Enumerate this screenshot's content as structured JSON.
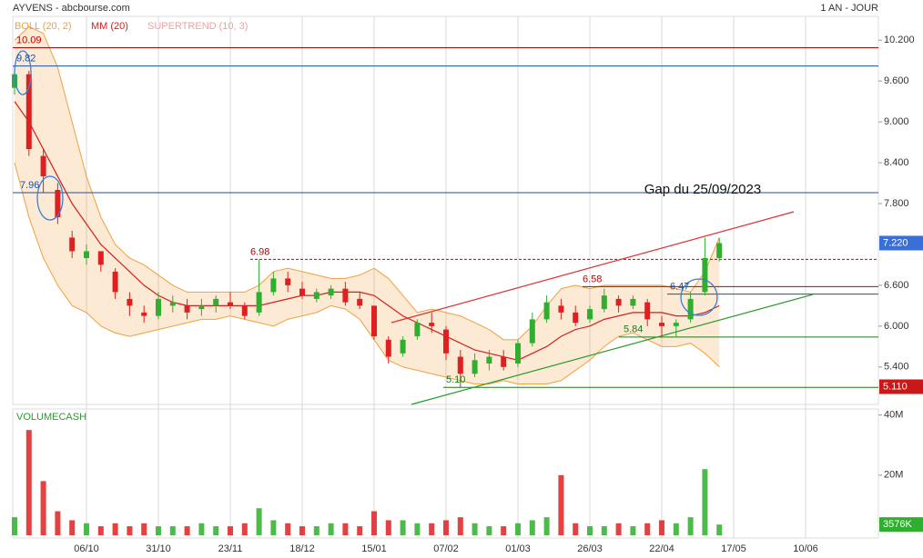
{
  "header": {
    "title": "AYVENS - abcbourse.com",
    "period": "1 AN - JOUR"
  },
  "chart_data": [
    {
      "type": "candlestick",
      "annotation": "Gap du 25/09/2023",
      "ylim": [
        4.85,
        10.55
      ],
      "yticks": [
        {
          "value": 5.4,
          "label": "5.400"
        },
        {
          "value": 6,
          "label": "6.000"
        },
        {
          "value": 6.6,
          "label": "6.600"
        },
        {
          "value": 7.8,
          "label": "7.800"
        },
        {
          "value": 8.4,
          "label": "8.400"
        },
        {
          "value": 9,
          "label": "9.000"
        },
        {
          "value": 9.6,
          "label": "9.600"
        },
        {
          "value": 10.2,
          "label": "10.200"
        }
      ],
      "open": [
        9.5,
        9.7,
        8.5,
        8.0,
        7.3,
        7.0,
        7.1,
        6.8,
        6.4,
        6.2,
        6.15,
        6.3,
        6.3,
        6.25,
        6.3,
        6.35,
        6.3,
        6.2,
        6.5,
        6.7,
        6.55,
        6.4,
        6.45,
        6.55,
        6.4,
        6.3,
        5.8,
        5.6,
        5.85,
        6.05,
        5.95,
        5.55,
        5.3,
        5.45,
        5.55,
        5.45,
        5.75,
        6.1,
        6.3,
        6.2,
        6.1,
        6.25,
        6.4,
        6.3,
        6.35,
        6.05,
        6.0,
        6.1,
        6.5,
        7.0,
        null,
        null,
        null,
        null,
        null,
        null,
        null,
        null,
        null,
        null,
        null
      ],
      "high": [
        9.82,
        9.75,
        8.6,
        8.1,
        7.4,
        7.2,
        7.1,
        6.85,
        6.5,
        6.3,
        6.5,
        6.45,
        6.4,
        6.4,
        6.45,
        6.5,
        6.35,
        6.98,
        6.8,
        6.8,
        6.65,
        6.55,
        6.6,
        6.65,
        6.5,
        6.3,
        5.85,
        5.85,
        6.1,
        6.2,
        6.0,
        5.65,
        5.6,
        5.65,
        5.65,
        5.8,
        6.2,
        6.45,
        6.4,
        6.3,
        6.3,
        6.55,
        6.45,
        6.45,
        6.4,
        6.15,
        6.1,
        6.5,
        7.3,
        7.3,
        null,
        null,
        null,
        null,
        null,
        null,
        null,
        null,
        null,
        null,
        null
      ],
      "low": [
        9.4,
        8.5,
        7.96,
        7.5,
        7.0,
        6.9,
        6.8,
        6.4,
        6.15,
        6.05,
        6.1,
        6.2,
        6.1,
        6.15,
        6.2,
        6.25,
        6.1,
        6.15,
        6.45,
        6.5,
        6.4,
        6.35,
        6.4,
        6.3,
        6.25,
        5.8,
        5.45,
        5.55,
        5.8,
        5.9,
        5.5,
        5.1,
        5.25,
        5.35,
        5.35,
        5.4,
        5.7,
        6.05,
        6.1,
        6.0,
        6.05,
        6.2,
        6.2,
        6.25,
        6.0,
        5.84,
        5.85,
        6.05,
        6.45,
        6.95,
        null,
        null,
        null,
        null,
        null,
        null,
        null,
        null,
        null,
        null,
        null
      ],
      "close": [
        9.7,
        8.6,
        8.2,
        7.6,
        7.1,
        7.1,
        6.9,
        6.5,
        6.3,
        6.15,
        6.4,
        6.35,
        6.2,
        6.3,
        6.4,
        6.3,
        6.15,
        6.5,
        6.7,
        6.6,
        6.45,
        6.5,
        6.55,
        6.35,
        6.3,
        5.85,
        5.55,
        5.8,
        6.05,
        6.0,
        5.6,
        5.3,
        5.5,
        5.55,
        5.4,
        5.75,
        6.1,
        6.35,
        6.2,
        6.05,
        6.25,
        6.45,
        6.3,
        6.4,
        6.1,
        6.0,
        6.05,
        6.4,
        7.0,
        7.22,
        null,
        null,
        null,
        null,
        null,
        null,
        null,
        null,
        null,
        null,
        null
      ],
      "up_color": "#2fae2f",
      "down_color": "#e02020",
      "boll": {
        "name": "BOLL (20, 2)",
        "color": "#f0a040",
        "upper": [
          10.2,
          10.4,
          10.3,
          9.8,
          9.0,
          8.2,
          7.6,
          7.2,
          7.0,
          6.9,
          6.75,
          6.6,
          6.5,
          6.5,
          6.5,
          6.5,
          6.5,
          6.6,
          6.8,
          6.85,
          6.8,
          6.75,
          6.7,
          6.7,
          6.75,
          6.85,
          6.7,
          6.45,
          6.2,
          6.25,
          6.2,
          6.15,
          6.05,
          5.95,
          5.8,
          5.8,
          6.0,
          6.3,
          6.55,
          6.6,
          6.55,
          6.6,
          6.6,
          6.6,
          6.6,
          6.6,
          6.55,
          6.5,
          6.8,
          7.3,
          null,
          null,
          null,
          null,
          null,
          null,
          null,
          null,
          null,
          null,
          null
        ],
        "lower": [
          8.4,
          7.6,
          7.0,
          6.6,
          6.3,
          6.2,
          6.0,
          5.9,
          5.85,
          5.9,
          5.95,
          6.0,
          6.05,
          6.1,
          6.1,
          6.15,
          6.1,
          6.05,
          6.0,
          6.1,
          6.15,
          6.2,
          6.3,
          6.25,
          6.1,
          5.8,
          5.5,
          5.4,
          5.35,
          5.3,
          5.25,
          5.2,
          5.15,
          5.15,
          5.2,
          5.15,
          5.15,
          5.15,
          5.2,
          5.35,
          5.5,
          5.7,
          5.85,
          5.9,
          5.8,
          5.7,
          5.7,
          5.75,
          5.6,
          5.4,
          null,
          null,
          null,
          null,
          null,
          null,
          null,
          null,
          null,
          null,
          null
        ]
      },
      "mm": {
        "name": "MM (20)",
        "color": "#d42020",
        "values": [
          9.3,
          9.0,
          8.6,
          8.2,
          7.8,
          7.5,
          7.2,
          7.0,
          6.8,
          6.6,
          6.45,
          6.35,
          6.3,
          6.3,
          6.3,
          6.3,
          6.3,
          6.3,
          6.35,
          6.4,
          6.45,
          6.45,
          6.5,
          6.5,
          6.5,
          6.45,
          6.3,
          6.15,
          6.05,
          5.95,
          5.85,
          5.75,
          5.65,
          5.6,
          5.55,
          5.5,
          5.6,
          5.7,
          5.85,
          5.95,
          6.0,
          6.1,
          6.15,
          6.2,
          6.2,
          6.2,
          6.15,
          6.15,
          6.2,
          6.3,
          null,
          null,
          null,
          null,
          null,
          null,
          null,
          null,
          null,
          null,
          null
        ]
      },
      "supertrend": {
        "name": "SUPERTREND (10, 3)",
        "color": "#f0a0a0"
      },
      "levels": [
        {
          "value": 10.09,
          "label": "10.09",
          "color": "#c00000",
          "dashed": false
        },
        {
          "value": 9.82,
          "label": "9.82",
          "color": "#1f4e9c",
          "dashed": false
        },
        {
          "value": 7.96,
          "label": "7.96",
          "color": "#1f4e9c",
          "dashed": false
        },
        {
          "value": 6.98,
          "label": "6.98",
          "color": "#c00000",
          "dashed": true
        },
        {
          "value": 6.58,
          "label": "6.58",
          "color": "#c00000",
          "dashed": false
        },
        {
          "value": 6.47,
          "label": "6.47",
          "color": "#1f4e9c",
          "dashed": false
        },
        {
          "value": 5.84,
          "label": "5.84",
          "color": "#1a7a1a",
          "dashed": false
        },
        {
          "value": 5.1,
          "label": "5.10",
          "color": "#1a7a1a",
          "dashed": false
        }
      ],
      "price_labels": [
        {
          "value": 7.22,
          "label": "7.220",
          "color": "#3a6fd8"
        },
        {
          "value": 5.11,
          "label": "5.110",
          "color": "#c81818"
        }
      ]
    },
    {
      "type": "bar",
      "title": "VOLUMECASH",
      "categories": [
        null,
        null,
        null,
        null,
        null,
        "06/10",
        null,
        null,
        null,
        null,
        "31/10",
        null,
        null,
        null,
        null,
        "23/11",
        null,
        null,
        null,
        null,
        "18/12",
        null,
        null,
        null,
        null,
        "15/01",
        null,
        null,
        null,
        null,
        "07/02",
        null,
        null,
        null,
        null,
        "01/03",
        null,
        null,
        null,
        null,
        "26/03",
        null,
        null,
        null,
        null,
        "22/04",
        null,
        null,
        null,
        null,
        "17/05",
        null,
        null,
        null,
        null,
        "10/06",
        null,
        null,
        null,
        null,
        null
      ],
      "values": [
        6000000,
        35000000,
        18000000,
        8000000,
        5000000,
        4000000,
        3000000,
        4000000,
        3000000,
        4000000,
        3000000,
        3000000,
        3000000,
        4000000,
        3000000,
        3000000,
        4000000,
        9000000,
        5000000,
        4000000,
        3000000,
        3000000,
        4000000,
        4000000,
        3000000,
        8000000,
        5000000,
        5000000,
        4000000,
        4000000,
        5000000,
        6000000,
        4000000,
        3000000,
        3000000,
        4000000,
        5000000,
        6000000,
        20000000,
        4000000,
        3000000,
        3000000,
        4000000,
        3000000,
        4000000,
        5000000,
        4000000,
        6000000,
        22000000,
        3576000,
        null,
        null,
        null,
        null,
        null,
        null,
        null,
        null,
        null,
        null,
        null
      ],
      "ylim": [
        0,
        42000000
      ],
      "yticks": [
        {
          "value": 20000000,
          "label": "20M"
        },
        {
          "value": 40000000,
          "label": "40M"
        }
      ],
      "last_label": {
        "value": 3576000,
        "label": "3576K",
        "color": "#2fae2f"
      }
    }
  ]
}
